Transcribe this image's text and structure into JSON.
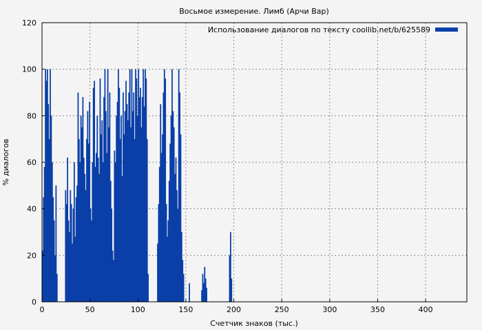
{
  "chart_data": {
    "type": "bar",
    "title": "Восьмое измерение. Лимб (Арчи Вар)",
    "xlabel": "Счетчик знаков (тыс.)",
    "ylabel": "% диалогов",
    "xlim": [
      0,
      443
    ],
    "ylim": [
      0,
      120
    ],
    "x_ticks": [
      0,
      50,
      100,
      150,
      200,
      250,
      300,
      350,
      400
    ],
    "y_ticks": [
      0,
      20,
      40,
      60,
      80,
      100,
      120
    ],
    "grid": true,
    "legend_position": "top-right",
    "bar_color": "#0b3fa8",
    "series": [
      {
        "name": "Использование диалогов по тексту coollib.net/b/625589",
        "x_start": 0,
        "x_step": 1,
        "values": [
          22,
          45,
          58,
          100,
          95,
          100,
          85,
          70,
          100,
          80,
          60,
          45,
          35,
          20,
          50,
          12,
          0,
          0,
          0,
          0,
          0,
          0,
          0,
          0,
          48,
          42,
          62,
          35,
          30,
          48,
          42,
          25,
          40,
          60,
          28,
          45,
          50,
          90,
          70,
          60,
          80,
          75,
          88,
          62,
          55,
          48,
          70,
          82,
          68,
          86,
          40,
          35,
          60,
          92,
          95,
          58,
          64,
          80,
          62,
          55,
          96,
          72,
          78,
          60,
          88,
          100,
          82,
          64,
          100,
          75,
          90,
          52,
          40,
          22,
          18,
          65,
          60,
          80,
          86,
          100,
          92,
          70,
          80,
          54,
          90,
          72,
          82,
          95,
          85,
          78,
          90,
          100,
          75,
          100,
          82,
          90,
          70,
          100,
          96,
          80,
          100,
          88,
          92,
          75,
          88,
          100,
          84,
          100,
          96,
          70,
          12,
          0,
          0,
          0,
          0,
          0,
          0,
          0,
          0,
          0,
          25,
          42,
          58,
          85,
          64,
          72,
          90,
          100,
          96,
          42,
          28,
          35,
          52,
          68,
          80,
          100,
          82,
          75,
          55,
          62,
          48,
          40,
          100,
          90,
          72,
          30,
          18,
          12,
          0,
          0,
          0,
          0,
          0,
          8,
          0,
          0,
          0,
          0,
          0,
          0,
          0,
          0,
          0,
          0,
          0,
          0,
          5,
          12,
          8,
          15,
          10,
          6,
          0,
          0,
          0,
          0,
          0,
          0,
          0,
          0,
          0,
          0,
          0,
          0,
          0,
          0,
          0,
          0,
          0,
          0,
          0,
          0,
          0,
          0,
          0,
          20,
          30,
          10,
          0,
          0,
          0,
          0,
          0,
          0,
          0,
          0,
          0,
          0,
          0,
          0,
          0,
          0,
          0,
          0,
          0,
          0,
          0,
          0,
          0,
          0,
          0,
          0,
          0,
          0,
          0,
          0,
          0,
          0,
          0,
          0,
          0,
          0,
          0,
          0,
          0,
          0,
          0,
          0,
          0,
          0,
          0,
          0,
          0,
          0,
          0,
          0,
          0,
          0,
          0,
          0,
          0,
          0,
          0,
          0,
          0,
          0,
          0,
          0,
          0,
          0,
          0,
          0,
          0,
          0,
          0,
          0,
          0,
          0,
          0,
          0,
          0,
          0,
          0,
          0,
          0,
          0,
          0,
          0,
          0,
          0,
          0,
          0,
          0,
          0,
          0,
          0,
          0,
          0,
          0,
          0,
          0,
          0,
          0,
          0,
          0,
          0,
          0,
          0,
          0,
          0,
          0,
          0,
          0,
          0,
          0,
          0,
          0,
          0,
          0,
          0,
          0,
          0,
          0,
          0,
          0,
          0,
          0,
          0,
          0,
          0,
          0,
          0,
          0,
          0,
          0,
          0,
          0,
          0,
          0,
          0,
          0,
          0,
          0,
          0,
          0,
          0,
          0,
          0,
          0,
          0,
          0,
          0,
          0,
          0,
          0,
          0,
          0,
          0,
          0,
          0,
          0,
          0,
          0,
          0,
          0,
          0,
          0,
          0,
          0,
          0,
          0,
          0,
          0,
          0,
          0,
          0,
          0,
          0,
          0,
          0,
          0,
          0,
          0,
          0,
          0,
          0,
          0,
          0,
          0,
          0,
          0,
          0,
          0,
          0,
          0,
          0,
          0,
          0,
          0,
          0,
          0,
          0,
          0,
          0,
          0,
          0,
          0,
          0,
          0,
          0,
          0,
          0,
          0,
          0,
          0,
          0,
          0,
          0,
          0,
          0,
          0,
          0,
          0,
          0,
          0,
          0,
          0,
          0,
          0,
          0,
          0,
          0,
          0,
          0,
          0,
          0,
          0,
          0,
          0,
          0,
          0,
          0,
          0,
          0,
          0,
          0,
          0,
          0,
          0,
          0,
          0,
          0,
          0,
          0,
          0,
          0,
          0,
          0,
          0,
          0,
          0,
          0,
          0,
          0,
          0,
          0,
          0,
          0,
          0,
          0,
          0,
          0,
          0,
          0,
          0,
          0,
          0,
          0,
          0
        ]
      }
    ]
  }
}
